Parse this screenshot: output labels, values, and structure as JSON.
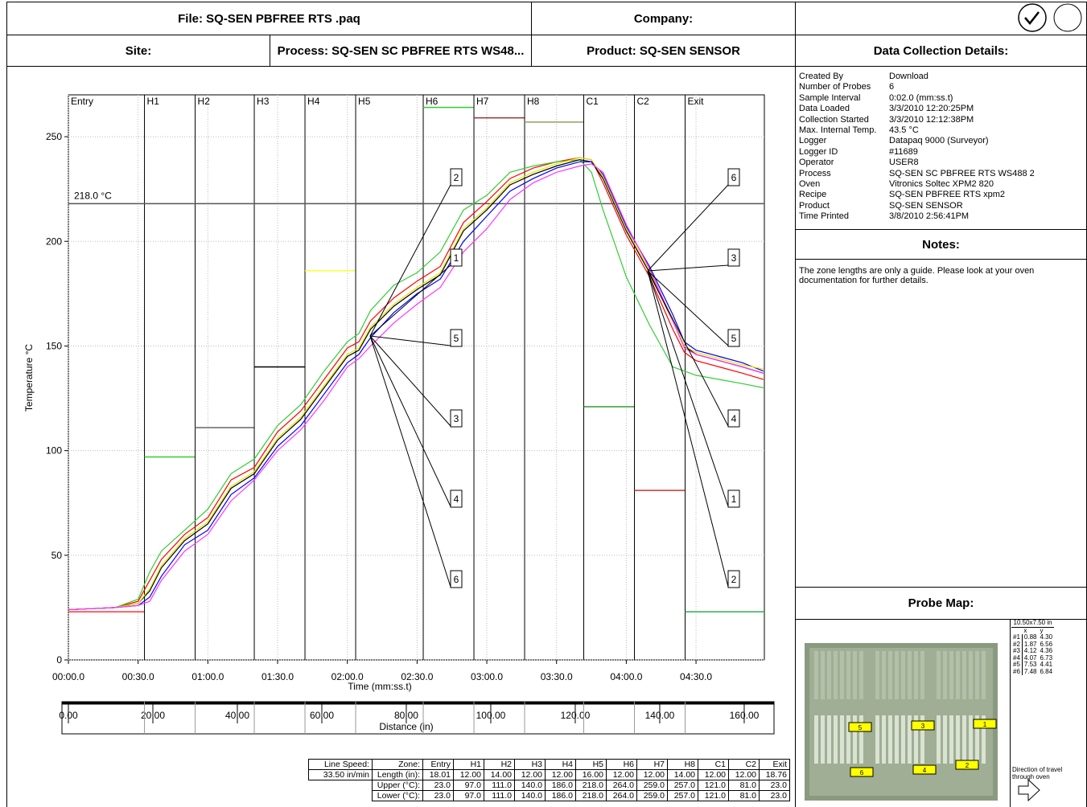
{
  "header": {
    "file": "File: SQ-SEN PBFREE RTS .paq",
    "company": "Company:",
    "site": "Site:",
    "process": "Process: SQ-SEN SC PBFREE RTS WS48...",
    "product": "Product: SQ-SEN SENSOR"
  },
  "details": {
    "title": "Data Collection Details:",
    "rows": [
      [
        "Created By",
        "Download"
      ],
      [
        "Number of Probes",
        "6"
      ],
      [
        "Sample Interval",
        "0:02.0 (mm:ss.t)"
      ],
      [
        "Data Loaded",
        "3/3/2010 12:20:25PM"
      ],
      [
        "Collection Started",
        "3/3/2010 12:12:38PM"
      ],
      [
        "Max. Internal Temp.",
        "43.5 °C"
      ],
      [
        "Logger",
        "Datapaq 9000 (Surveyor)"
      ],
      [
        "Logger ID",
        "#11689"
      ],
      [
        "Operator",
        "USER8"
      ],
      [
        "Process",
        "SQ-SEN SC PBFREE RTS WS488 2"
      ],
      [
        "Oven",
        "Vitronics Soltec XPM2 820"
      ],
      [
        "Recipe",
        "SQ-SEN PBFREE RTS xpm2"
      ],
      [
        "Product",
        "SQ-SEN SENSOR"
      ],
      [
        "Time Printed",
        "3/8/2010 2:56:41PM"
      ]
    ]
  },
  "notes": {
    "title": "Notes:",
    "text": "The zone lengths are only a guide.  Please look at your oven documentation for further details."
  },
  "probe_map": {
    "title": "Probe Map:",
    "size": "10.50x7.50 in",
    "columns": [
      "x",
      "y"
    ],
    "rows": [
      [
        "#1",
        "0.88",
        "4.30"
      ],
      [
        "#2",
        "1.87",
        "6.56"
      ],
      [
        "#3",
        "4.12",
        "4.36"
      ],
      [
        "#4",
        "4.07",
        "6.73"
      ],
      [
        "#5",
        "7.53",
        "4.41"
      ],
      [
        "#6",
        "7.48",
        "6.84"
      ]
    ],
    "board_labels": [
      "5",
      "3",
      "1",
      "6",
      "4",
      "2"
    ],
    "direction": "Direction of travel through oven"
  },
  "chart_data": {
    "type": "line",
    "y_label": "Temperature °C",
    "x_label": "Time (mm:ss.t)",
    "x2_label": "Distance (in)",
    "grid": true,
    "x": [
      0,
      10,
      20,
      30,
      35,
      40,
      50,
      60,
      70,
      80,
      90,
      100,
      110,
      120,
      125,
      130,
      140,
      150,
      160,
      170,
      180,
      190,
      200,
      210,
      220,
      225,
      230,
      240,
      250,
      260,
      265,
      270,
      280,
      290,
      299
    ],
    "series": [
      {
        "name": "1",
        "color": "#ff0000",
        "values": [
          24,
          24.5,
          25,
          28,
          38,
          48,
          60,
          68,
          86,
          92,
          109,
          119,
          134,
          149,
          152,
          162,
          173,
          181,
          188,
          209,
          219,
          230,
          235,
          238,
          240,
          239,
          228,
          203,
          183,
          158,
          147,
          143,
          140,
          137,
          134
        ]
      },
      {
        "name": "2",
        "color": "#33cc33",
        "values": [
          24,
          24.5,
          25,
          29,
          42,
          52,
          62,
          72,
          89,
          96,
          112,
          122,
          138,
          152,
          156,
          167,
          179,
          185,
          195,
          215,
          222,
          233,
          236,
          238,
          239,
          233,
          215,
          183,
          160,
          140,
          138,
          136,
          134,
          132,
          130
        ]
      },
      {
        "name": "3",
        "color": "#000000",
        "values": [
          24,
          24.5,
          25,
          27,
          33,
          44,
          57,
          65,
          82,
          89,
          105,
          115,
          130,
          145,
          148,
          158,
          169,
          177,
          184,
          205,
          215,
          227,
          232,
          236,
          239,
          238,
          230,
          205,
          185,
          162,
          150,
          146,
          143,
          140,
          137
        ]
      },
      {
        "name": "4",
        "color": "#0000ff",
        "values": [
          24,
          24.5,
          25,
          26,
          30,
          40,
          55,
          62,
          79,
          87,
          102,
          112,
          127,
          142,
          146,
          154,
          166,
          175,
          182,
          200,
          212,
          224,
          230,
          235,
          238,
          238,
          232,
          207,
          188,
          165,
          152,
          148,
          145,
          142,
          138
        ]
      },
      {
        "name": "5",
        "color": "#e6e600",
        "values": [
          24,
          24.5,
          25,
          27,
          34,
          45,
          58,
          66,
          83,
          90,
          106,
          116,
          131,
          146,
          149,
          159,
          170,
          178,
          185,
          206,
          216,
          228,
          233,
          237,
          240,
          239,
          231,
          206,
          186,
          163,
          150,
          147,
          144,
          141,
          139
        ]
      },
      {
        "name": "6",
        "color": "#ff33ff",
        "values": [
          24,
          24.5,
          25,
          26,
          28,
          38,
          52,
          60,
          76,
          86,
          100,
          110,
          124,
          140,
          144,
          150,
          161,
          170,
          178,
          195,
          206,
          220,
          228,
          233,
          236,
          237,
          233,
          208,
          187,
          162,
          149,
          146,
          143,
          140,
          137
        ]
      }
    ],
    "xlim": [
      0,
      299.4
    ],
    "xticks": [
      {
        "value": 0,
        "label": "00:00.0"
      },
      {
        "value": 30,
        "label": "00:30.0"
      },
      {
        "value": 60,
        "label": "01:00.0"
      },
      {
        "value": 90,
        "label": "01:30.0"
      },
      {
        "value": 120,
        "label": "02:00.0"
      },
      {
        "value": 150,
        "label": "02:30.0"
      },
      {
        "value": 180,
        "label": "03:00.0"
      },
      {
        "value": 210,
        "label": "03:30.0"
      },
      {
        "value": 240,
        "label": "04:00.0"
      },
      {
        "value": 270,
        "label": "04:30.0"
      }
    ],
    "ylim": [
      0,
      270
    ],
    "yticks": [
      0,
      50,
      100,
      150,
      200,
      250
    ],
    "x2lim": [
      0,
      164.77
    ],
    "x2ticks": [
      {
        "value": 0,
        "label": "0.00"
      },
      {
        "value": 20,
        "label": "20.00"
      },
      {
        "value": 40,
        "label": "40.00"
      },
      {
        "value": 60,
        "label": "60.00"
      },
      {
        "value": 80,
        "label": "80.00"
      },
      {
        "value": 100,
        "label": "100.00"
      },
      {
        "value": 120,
        "label": "120.00"
      },
      {
        "value": 140,
        "label": "140.00"
      },
      {
        "value": 160,
        "label": "160.00"
      }
    ],
    "threshold": {
      "value": 218,
      "label": "218.0 °C"
    },
    "zones": {
      "line_speed_label": "Line Speed:",
      "line_speed": "33.50 in/min",
      "title": "Zone:",
      "names": [
        "Entry",
        "H1",
        "H2",
        "H3",
        "H4",
        "H5",
        "H6",
        "H7",
        "H8",
        "C1",
        "C2",
        "Exit"
      ],
      "length": {
        "name": "Length (in):",
        "values": [
          18.01,
          12,
          14,
          12,
          12,
          16,
          12,
          12,
          14,
          12,
          12,
          18.76
        ],
        "value_labels": [
          "18.01",
          "12.00",
          "14.00",
          "12.00",
          "12.00",
          "16.00",
          "12.00",
          "12.00",
          "14.00",
          "12.00",
          "12.00",
          "18.76"
        ]
      },
      "upper": {
        "name": "Upper (°C):",
        "values": [
          23,
          97,
          111,
          140,
          186,
          218,
          264,
          259,
          257,
          121,
          81,
          23
        ],
        "value_labels": [
          "23.0",
          "97.0",
          "111.0",
          "140.0",
          "186.0",
          "218.0",
          "264.0",
          "259.0",
          "257.0",
          "121.0",
          "81.0",
          "23.0"
        ],
        "colors": [
          "#ff3333",
          "#33cc33",
          "#666666",
          "#000000",
          "#ffff33",
          "#000000",
          "#33cc33",
          "#993333",
          "#999966",
          "#339933",
          "#cc3333",
          "#33aa55"
        ]
      },
      "lower": {
        "name": "Lower (°C):",
        "values": [
          23,
          97,
          111,
          140,
          186,
          218,
          264,
          259,
          257,
          121,
          81,
          23
        ],
        "value_labels": [
          "23.0",
          "97.0",
          "111.0",
          "140.0",
          "186.0",
          "218.0",
          "264.0",
          "259.0",
          "257.0",
          "121.0",
          "81.0",
          "23.0"
        ]
      }
    }
  }
}
